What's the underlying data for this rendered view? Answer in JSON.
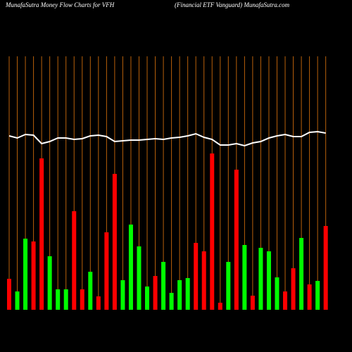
{
  "chart_data": {
    "type": "bar",
    "title": "MunafaSutra  Money Flow  Charts for VFH",
    "subtitle": "(Financial ETF Vanguard) MunafaSutra.com",
    "categories": [
      null,
      null,
      null,
      null,
      null,
      null,
      null,
      null,
      null,
      null,
      null,
      null,
      null,
      null,
      null,
      null,
      null,
      null,
      null,
      null,
      null,
      null,
      null,
      null,
      null,
      null,
      null,
      null,
      null,
      null,
      null,
      null,
      null,
      null,
      null,
      null,
      null,
      null,
      null,
      null
    ],
    "values": [
      44,
      26,
      101,
      97,
      215,
      76,
      29,
      29,
      140,
      29,
      54,
      19,
      110,
      193,
      42,
      121,
      90,
      33,
      48,
      68,
      24,
      42,
      45,
      95,
      83,
      222,
      10,
      68,
      199,
      92,
      20,
      88,
      83,
      46,
      26,
      59,
      102,
      36,
      41,
      119
    ],
    "colors": [
      "#ff0000",
      "#00ff00",
      "#00ff00",
      "#ff0000",
      "#ff0000",
      "#00ff00",
      "#00ff00",
      "#00ff00",
      "#ff0000",
      "#ff0000",
      "#00ff00",
      "#ff0000",
      "#ff0000",
      "#ff0000",
      "#00ff00",
      "#00ff00",
      "#00ff00",
      "#00ff00",
      "#ff0000",
      "#00ff00",
      "#00ff00",
      "#00ff00",
      "#00ff00",
      "#ff0000",
      "#ff0000",
      "#ff0000",
      "#ff0000",
      "#00ff00",
      "#ff0000",
      "#00ff00",
      "#ff0000",
      "#00ff00",
      "#00ff00",
      "#00ff00",
      "#ff0000",
      "#ff0000",
      "#00ff00",
      "#ff0000",
      "#00ff00",
      "#ff0000"
    ],
    "line": {
      "color": "#ffffff",
      "values": [
        247,
        244,
        249,
        248,
        236,
        239,
        244,
        244,
        242,
        243,
        247,
        248,
        246,
        239,
        240,
        241,
        241,
        242,
        243,
        242,
        244,
        245,
        247,
        250,
        245,
        242,
        234,
        234,
        236,
        233,
        237,
        239,
        244,
        247,
        249,
        246,
        246,
        252,
        253,
        251
      ]
    },
    "grid_color": "#b8600a"
  }
}
